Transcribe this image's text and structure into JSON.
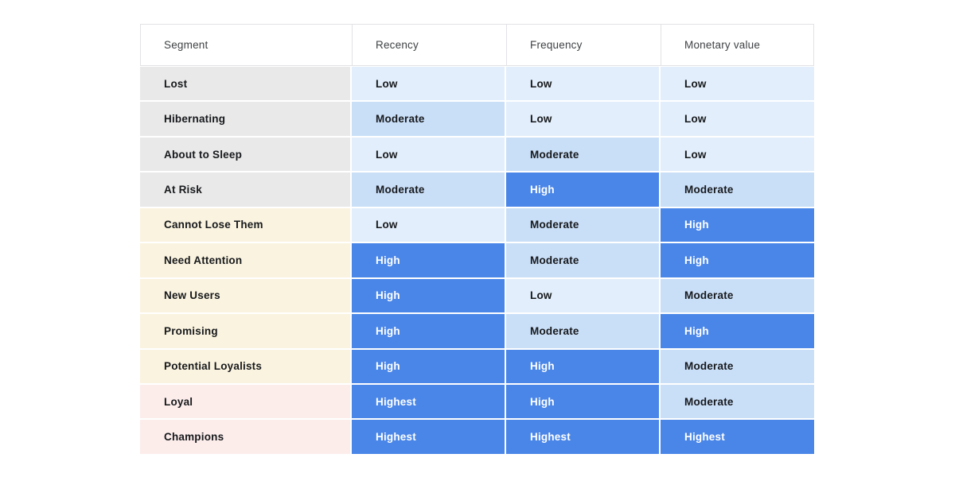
{
  "chart_data": {
    "type": "table",
    "subtype": "heatmap",
    "columns": [
      "Segment",
      "Recency",
      "Frequency",
      "Monetary value"
    ],
    "level_scale": [
      "Low",
      "Moderate",
      "High",
      "Highest"
    ],
    "rows": [
      {
        "segment": "Lost",
        "group": "gray",
        "recency": "Low",
        "frequency": "Low",
        "monetary": "Low"
      },
      {
        "segment": "Hibernating",
        "group": "gray",
        "recency": "Moderate",
        "frequency": "Low",
        "monetary": "Low"
      },
      {
        "segment": "About to Sleep",
        "group": "gray",
        "recency": "Low",
        "frequency": "Moderate",
        "monetary": "Low"
      },
      {
        "segment": "At Risk",
        "group": "gray",
        "recency": "Moderate",
        "frequency": "High",
        "monetary": "Moderate"
      },
      {
        "segment": "Cannot Lose Them",
        "group": "cream",
        "recency": "Low",
        "frequency": "Moderate",
        "monetary": "High"
      },
      {
        "segment": "Need Attention",
        "group": "cream",
        "recency": "High",
        "frequency": "Moderate",
        "monetary": "High"
      },
      {
        "segment": "New Users",
        "group": "cream",
        "recency": "High",
        "frequency": "Low",
        "monetary": "Moderate"
      },
      {
        "segment": "Promising",
        "group": "cream",
        "recency": "High",
        "frequency": "Moderate",
        "monetary": "High"
      },
      {
        "segment": "Potential Loyalists",
        "group": "cream",
        "recency": "High",
        "frequency": "High",
        "monetary": "Moderate"
      },
      {
        "segment": "Loyal",
        "group": "pink",
        "recency": "Highest",
        "frequency": "High",
        "monetary": "Moderate"
      },
      {
        "segment": "Champions",
        "group": "pink",
        "recency": "Highest",
        "frequency": "Highest",
        "monetary": "Highest"
      }
    ]
  },
  "colors": {
    "level_low": "#e2eefb",
    "level_moderate": "#c9dff8",
    "level_high": "#4a86e8",
    "level_highest": "#4a86e8",
    "segment_gray": "#e9e9e9",
    "segment_cream": "#faf3df",
    "segment_pink": "#fcedeb",
    "border_color": "#e2e2e6"
  }
}
